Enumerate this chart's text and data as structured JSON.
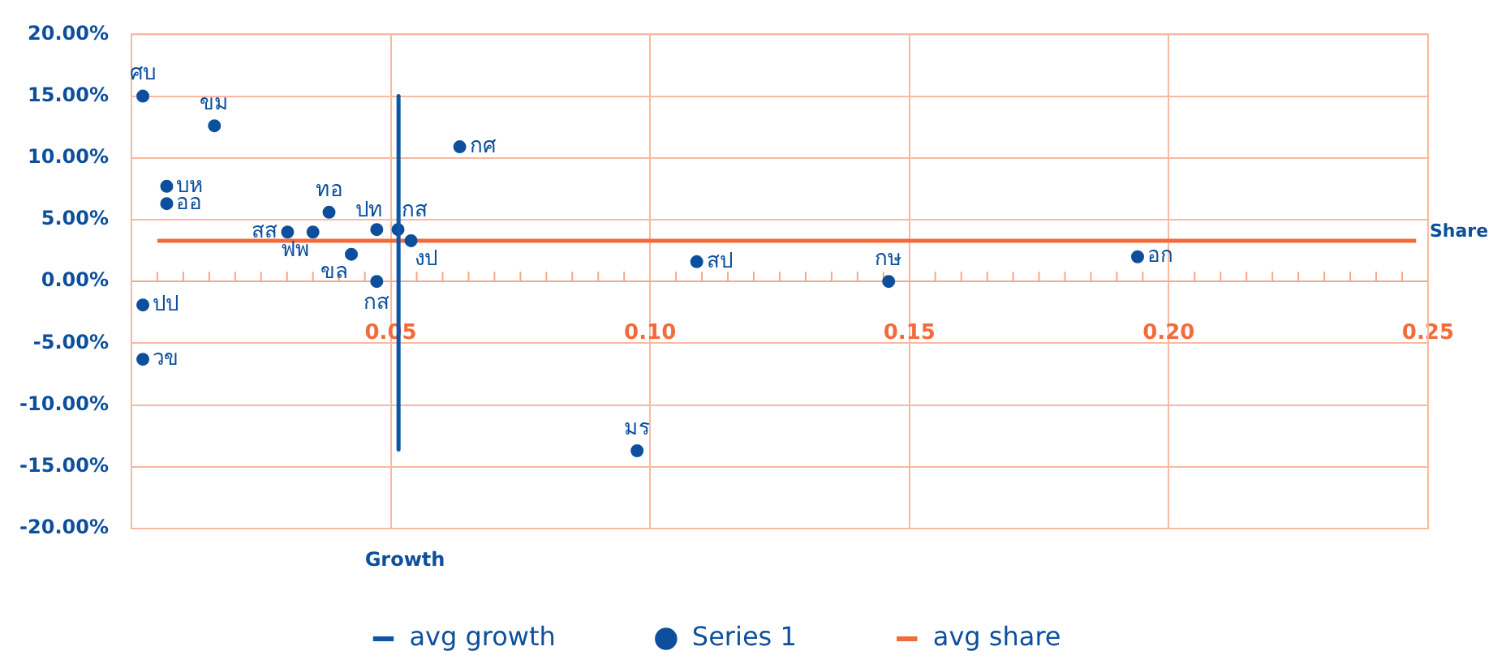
{
  "chart_data": {
    "type": "scatter",
    "xlabel": "Growth",
    "ylabel": "Share",
    "xlim": [
      0,
      0.25
    ],
    "ylim": [
      -20,
      20
    ],
    "xticks": [
      {
        "value": 0.005,
        "label": null
      },
      {
        "value": 0.01,
        "label": null
      },
      {
        "value": 0.015,
        "label": null
      },
      {
        "value": 0.02,
        "label": null
      },
      {
        "value": 0.025,
        "label": null
      },
      {
        "value": 0.03,
        "label": null
      },
      {
        "value": 0.035,
        "label": null
      },
      {
        "value": 0.04,
        "label": null
      },
      {
        "value": 0.045,
        "label": null
      },
      {
        "value": 0.05,
        "label": "0.05"
      },
      {
        "value": 0.055,
        "label": null
      },
      {
        "value": 0.06,
        "label": null
      },
      {
        "value": 0.065,
        "label": null
      },
      {
        "value": 0.07,
        "label": null
      },
      {
        "value": 0.075,
        "label": null
      },
      {
        "value": 0.08,
        "label": null
      },
      {
        "value": 0.085,
        "label": null
      },
      {
        "value": 0.09,
        "label": null
      },
      {
        "value": 0.095,
        "label": null
      },
      {
        "value": 0.1,
        "label": "0.10"
      },
      {
        "value": 0.105,
        "label": null
      },
      {
        "value": 0.11,
        "label": null
      },
      {
        "value": 0.115,
        "label": null
      },
      {
        "value": 0.12,
        "label": null
      },
      {
        "value": 0.125,
        "label": null
      },
      {
        "value": 0.13,
        "label": null
      },
      {
        "value": 0.135,
        "label": null
      },
      {
        "value": 0.14,
        "label": null
      },
      {
        "value": 0.145,
        "label": null
      },
      {
        "value": 0.15,
        "label": "0.15"
      },
      {
        "value": 0.155,
        "label": null
      },
      {
        "value": 0.16,
        "label": null
      },
      {
        "value": 0.165,
        "label": null
      },
      {
        "value": 0.17,
        "label": null
      },
      {
        "value": 0.175,
        "label": null
      },
      {
        "value": 0.18,
        "label": null
      },
      {
        "value": 0.185,
        "label": null
      },
      {
        "value": 0.19,
        "label": null
      },
      {
        "value": 0.195,
        "label": null
      },
      {
        "value": 0.2,
        "label": "0.20"
      },
      {
        "value": 0.205,
        "label": null
      },
      {
        "value": 0.21,
        "label": null
      },
      {
        "value": 0.215,
        "label": null
      },
      {
        "value": 0.22,
        "label": null
      },
      {
        "value": 0.225,
        "label": null
      },
      {
        "value": 0.23,
        "label": null
      },
      {
        "value": 0.235,
        "label": null
      },
      {
        "value": 0.24,
        "label": null
      },
      {
        "value": 0.245,
        "label": null
      },
      {
        "value": 0.25,
        "label": "0.25"
      }
    ],
    "yticks": [
      {
        "value": -20,
        "label": "-20.00%"
      },
      {
        "value": -15,
        "label": "-15.00%"
      },
      {
        "value": -10,
        "label": "-10.00%"
      },
      {
        "value": -5,
        "label": "-5.00%"
      },
      {
        "value": 0,
        "label": "0.00%"
      },
      {
        "value": 5,
        "label": "5.00%"
      },
      {
        "value": 10,
        "label": "10.00%"
      },
      {
        "value": 15,
        "label": "15.00%"
      },
      {
        "value": 20,
        "label": "20.00%"
      }
    ],
    "grid": true,
    "legend": "bottom",
    "marker": "circle",
    "series": [
      {
        "name": "avg growth",
        "type": "line",
        "color": "#0d56a6",
        "x": [
          0.0515,
          0.0515
        ],
        "values": [
          15.0,
          -13.6
        ],
        "marker": "none"
      },
      {
        "name": "Series 1",
        "type": "scatter",
        "color": "#0d4f9c",
        "x": [
          0.0022,
          0.016,
          0.0068,
          0.0068,
          0.0381,
          0.0301,
          0.035,
          0.0424,
          0.0473,
          0.0514,
          0.0539,
          0.0473,
          0.0633,
          0.0022,
          0.0022,
          0.109,
          0.146,
          0.194,
          0.0975
        ],
        "values": [
          15.0,
          12.6,
          7.7,
          6.3,
          5.6,
          4.0,
          4.0,
          2.2,
          4.2,
          4.2,
          3.3,
          0.0,
          10.9,
          -1.9,
          -6.3,
          1.6,
          0.0,
          2.0,
          -13.7
        ]
      },
      {
        "name": "avg share",
        "type": "line",
        "color": "#f26b3a",
        "x": [
          0.005,
          0.2477
        ],
        "values": [
          3.3,
          3.3
        ],
        "marker": "none"
      }
    ],
    "annotations": [
      {
        "text": "ศบ",
        "x": 0.0022,
        "y": 15.0
      },
      {
        "text": "ขม",
        "x": 0.016,
        "y": 12.6
      },
      {
        "text": "บห",
        "x": 0.0068,
        "y": 7.7
      },
      {
        "text": "ออ",
        "x": 0.0068,
        "y": 6.3
      },
      {
        "text": "ทอ",
        "x": 0.0381,
        "y": 5.6
      },
      {
        "text": "สส",
        "x": 0.0301,
        "y": 4.0
      },
      {
        "text": "ฟพ",
        "x": 0.035,
        "y": 4.0
      },
      {
        "text": "ขล",
        "x": 0.0424,
        "y": 2.2
      },
      {
        "text": "ปท",
        "x": 0.0473,
        "y": 4.2
      },
      {
        "text": "กส",
        "x": 0.0514,
        "y": 4.2
      },
      {
        "text": "งป",
        "x": 0.0539,
        "y": 3.3
      },
      {
        "text": "กส",
        "x": 0.0473,
        "y": 0.0
      },
      {
        "text": "กศ",
        "x": 0.0633,
        "y": 10.9
      },
      {
        "text": "ปป",
        "x": 0.0022,
        "y": -1.9
      },
      {
        "text": "วข",
        "x": 0.0022,
        "y": -6.3
      },
      {
        "text": "สป",
        "x": 0.109,
        "y": 1.6
      },
      {
        "text": "กษ",
        "x": 0.146,
        "y": 0.0
      },
      {
        "text": "อก",
        "x": 0.194,
        "y": 2.0
      },
      {
        "text": "มร",
        "x": 0.0975,
        "y": -13.7
      }
    ]
  }
}
